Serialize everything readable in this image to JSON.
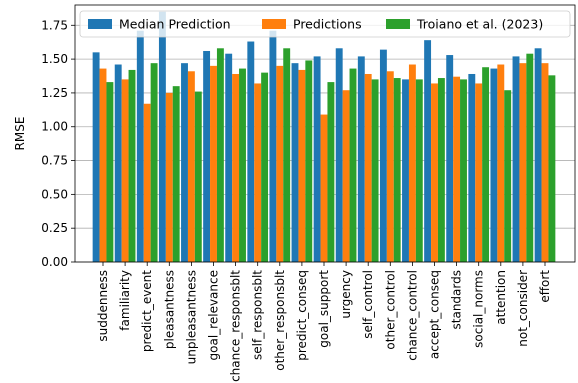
{
  "chart_data": {
    "type": "bar",
    "title": "",
    "xlabel": "",
    "ylabel": "RMSE",
    "ylim": [
      0,
      1.9
    ],
    "yticks": [
      0.0,
      0.25,
      0.5,
      0.75,
      1.0,
      1.25,
      1.5,
      1.75
    ],
    "ytick_labels": [
      "0.00",
      "0.25",
      "0.50",
      "0.75",
      "1.00",
      "1.25",
      "1.50",
      "1.75"
    ],
    "grid": "y",
    "legend": "top",
    "categories": [
      "suddenness",
      "familiarity",
      "predict_event",
      "pleasantness",
      "unpleasantness",
      "goal_relevance",
      "chance_responsblt",
      "self_responsblt",
      "other_responsblt",
      "predict_conseq",
      "goal_support",
      "urgency",
      "self_control",
      "other_control",
      "chance_control",
      "accept_conseq",
      "standards",
      "social_norms",
      "attention",
      "not_consider",
      "effort"
    ],
    "series": [
      {
        "name": "Median Prediction",
        "color": "#1f77b4",
        "values": [
          1.55,
          1.46,
          1.71,
          1.85,
          1.47,
          1.56,
          1.54,
          1.63,
          1.71,
          1.47,
          1.52,
          1.58,
          1.52,
          1.57,
          1.35,
          1.64,
          1.53,
          1.39,
          1.43,
          1.52,
          1.58
        ]
      },
      {
        "name": "Predictions",
        "color": "#ff7f0e",
        "values": [
          1.43,
          1.35,
          1.17,
          1.25,
          1.41,
          1.45,
          1.39,
          1.32,
          1.45,
          1.42,
          1.09,
          1.27,
          1.39,
          1.41,
          1.46,
          1.32,
          1.37,
          1.32,
          1.46,
          1.47,
          1.47
        ]
      },
      {
        "name": "Troiano et al. (2023)",
        "color": "#2ca02c",
        "values": [
          1.33,
          1.42,
          1.47,
          1.3,
          1.26,
          1.58,
          1.43,
          1.4,
          1.58,
          1.49,
          1.33,
          1.43,
          1.35,
          1.36,
          1.35,
          1.36,
          1.35,
          1.44,
          1.27,
          1.54,
          1.38
        ]
      }
    ]
  }
}
